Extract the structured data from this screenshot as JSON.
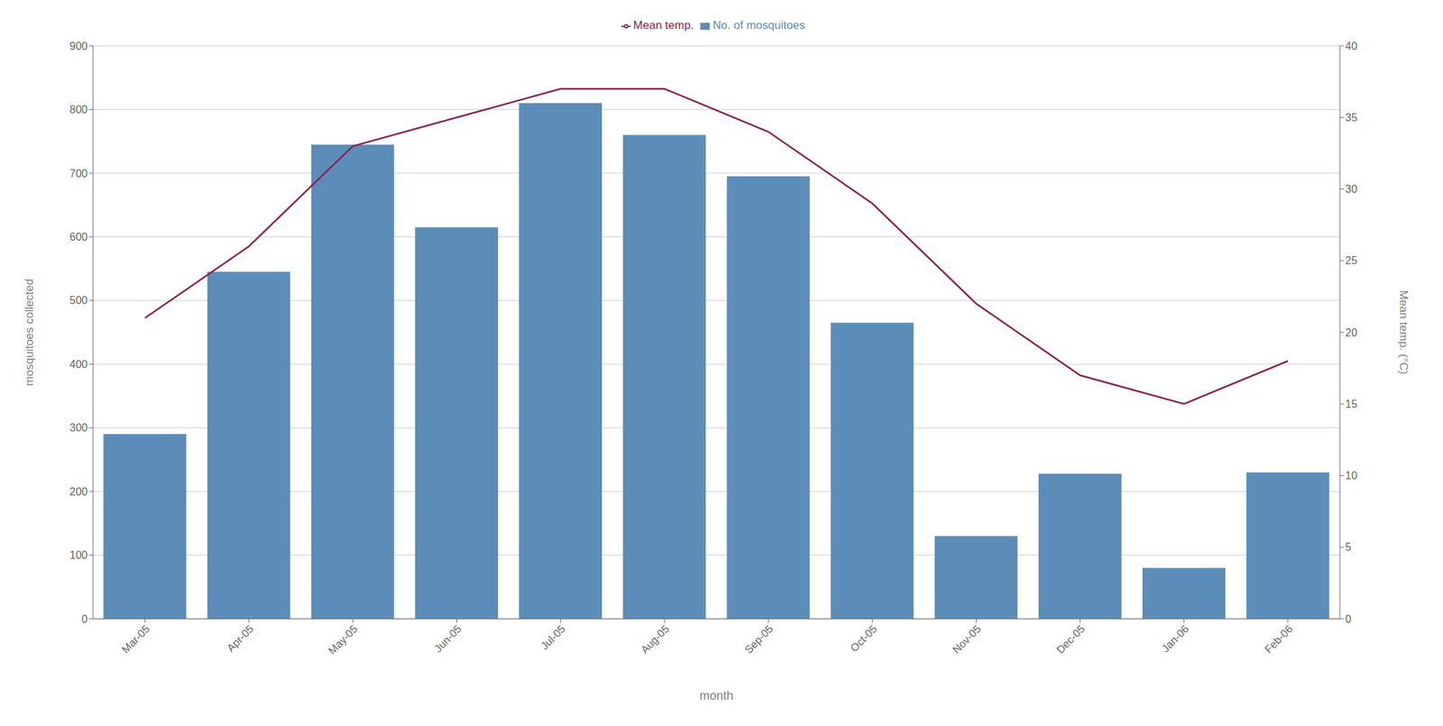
{
  "chart_data": {
    "type": "bar",
    "categories": [
      "Mar-05",
      "Apr-05",
      "May-05",
      "Jun-05",
      "Jul-05",
      "Aug-05",
      "Sep-05",
      "Oct-05",
      "Nov-05",
      "Dec-05",
      "Jan-06",
      "Feb-06"
    ],
    "series": [
      {
        "name": "No. of mosquitoes",
        "type": "bar",
        "color": "#5B8DB8",
        "values": [
          290,
          545,
          745,
          615,
          810,
          760,
          695,
          465,
          130,
          228,
          80,
          230
        ]
      },
      {
        "name": "Mean temp.",
        "type": "line",
        "color": "#8B2252",
        "axis": "y2",
        "values": [
          21,
          26,
          33,
          35,
          37,
          37,
          34,
          29,
          22,
          17,
          15,
          18
        ]
      }
    ],
    "xlabel": "month",
    "ylabel": "mosquitoes collected",
    "y2label": "Mean temp. (°C)",
    "ylim": [
      0,
      900
    ],
    "yticks": [
      0,
      100,
      200,
      300,
      400,
      500,
      600,
      700,
      800,
      900
    ],
    "y2lim": [
      0,
      40
    ],
    "y2ticks": [
      0,
      5,
      10,
      15,
      20,
      25,
      30,
      35,
      40
    ],
    "grid": true,
    "legend": "top"
  }
}
